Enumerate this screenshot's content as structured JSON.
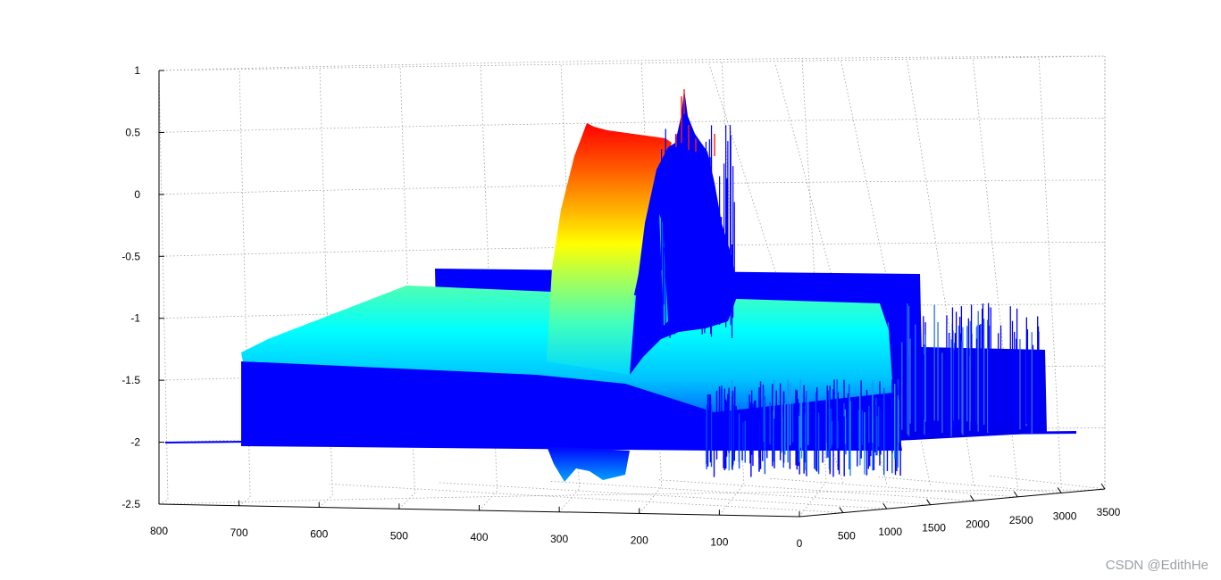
{
  "chart_data": {
    "type": "surface",
    "title": "",
    "xlabel": "",
    "ylabel": "",
    "zlabel": "",
    "grid": true,
    "colormap": "jet",
    "colormap_stops": [
      "#00008f",
      "#0000ff",
      "#00ffff",
      "#7fff7f",
      "#ffff00",
      "#ff7f00",
      "#ff0000",
      "#8f0000"
    ],
    "x_axis": {
      "range": [
        800,
        0
      ],
      "ticks": [
        "800",
        "700",
        "600",
        "500",
        "400",
        "300",
        "200",
        "100",
        "0"
      ]
    },
    "y_axis": {
      "range": [
        0,
        3500
      ],
      "ticks": [
        "500",
        "1000",
        "1500",
        "2000",
        "2500",
        "3000",
        "3500"
      ]
    },
    "z_axis": {
      "range": [
        -2.5,
        1
      ],
      "ticks": [
        "1",
        "0.5",
        "0",
        "-0.5",
        "-1",
        "-1.5",
        "-2",
        "-2.5"
      ]
    },
    "features": [
      {
        "name": "base plane",
        "z": -2.0
      },
      {
        "name": "back plate",
        "x_range": [
          460,
          20
        ],
        "z": -0.62
      },
      {
        "name": "plateau",
        "x_range": [
          700,
          100
        ],
        "z_top": -1.3,
        "z_edge": -1.55
      },
      {
        "name": "main ridge",
        "x_range": [
          330,
          150
        ],
        "z_peak": 0.55
      },
      {
        "name": "max spike",
        "x": 145,
        "z": 0.86
      },
      {
        "name": "lower dip",
        "x_range": [
          310,
          230
        ],
        "z_min": -2.32
      }
    ]
  },
  "watermark": "CSDN @EdithHe"
}
